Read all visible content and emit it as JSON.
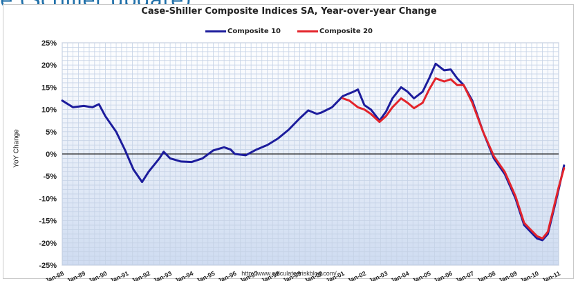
{
  "page": {
    "slide_title": "e (Schiller update)",
    "source": "http://www.calculatedriskblog.com/"
  },
  "chart_data": {
    "type": "line",
    "title": "Case-Shiller Composite Indices SA, Year-over-year Change",
    "xlabel": "",
    "ylabel": "YoY Change",
    "ylim": [
      -25,
      25
    ],
    "xlim": [
      1988.0,
      2011.0
    ],
    "y_ticks": [
      "25%",
      "20%",
      "15%",
      "10%",
      "5%",
      "0%",
      "-5%",
      "-10%",
      "-15%",
      "-20%",
      "-25%"
    ],
    "x_ticks": [
      "Jan-88",
      "Jan-89",
      "Jan-90",
      "Jan-91",
      "Jan-92",
      "Jan-93",
      "Jan-94",
      "Jan-95",
      "Jan-96",
      "Jan-97",
      "Jan-98",
      "Jan-99",
      "Jan-00",
      "Jan-01",
      "Jan-02",
      "Jan-03",
      "Jan-04",
      "Jan-05",
      "Jan-06",
      "Jan-07",
      "Jan-08",
      "Jan-09",
      "Jan-10",
      "Jan-11"
    ],
    "grid": true,
    "legend_position": "top-center",
    "series": [
      {
        "name": "Composite 10",
        "color": "#1c1c9c",
        "points": [
          [
            1988.0,
            12.0
          ],
          [
            1988.5,
            10.5
          ],
          [
            1989.0,
            10.8
          ],
          [
            1989.4,
            10.5
          ],
          [
            1989.7,
            11.2
          ],
          [
            1990.0,
            8.5
          ],
          [
            1990.5,
            5.0
          ],
          [
            1990.9,
            1.0
          ],
          [
            1991.3,
            -3.5
          ],
          [
            1991.7,
            -6.3
          ],
          [
            1992.0,
            -4.0
          ],
          [
            1992.5,
            -1.0
          ],
          [
            1992.7,
            0.5
          ],
          [
            1993.0,
            -1.0
          ],
          [
            1993.5,
            -1.7
          ],
          [
            1994.0,
            -1.8
          ],
          [
            1994.5,
            -1.0
          ],
          [
            1995.0,
            0.8
          ],
          [
            1995.5,
            1.5
          ],
          [
            1995.8,
            1.0
          ],
          [
            1996.0,
            0.0
          ],
          [
            1996.5,
            -0.3
          ],
          [
            1997.0,
            1.0
          ],
          [
            1997.5,
            2.0
          ],
          [
            1998.0,
            3.5
          ],
          [
            1998.5,
            5.5
          ],
          [
            1999.0,
            8.0
          ],
          [
            1999.4,
            9.8
          ],
          [
            1999.8,
            9.0
          ],
          [
            2000.0,
            9.3
          ],
          [
            2000.5,
            10.5
          ],
          [
            2001.0,
            13.0
          ],
          [
            2001.5,
            14.0
          ],
          [
            2001.7,
            14.5
          ],
          [
            2002.0,
            11.0
          ],
          [
            2002.3,
            10.0
          ],
          [
            2002.7,
            7.5
          ],
          [
            2003.0,
            9.5
          ],
          [
            2003.3,
            12.5
          ],
          [
            2003.7,
            15.0
          ],
          [
            2004.0,
            14.0
          ],
          [
            2004.3,
            12.5
          ],
          [
            2004.7,
            14.0
          ],
          [
            2005.0,
            17.0
          ],
          [
            2005.3,
            20.3
          ],
          [
            2005.7,
            18.8
          ],
          [
            2006.0,
            19.0
          ],
          [
            2006.3,
            17.0
          ],
          [
            2006.6,
            15.5
          ],
          [
            2007.0,
            12.0
          ],
          [
            2007.5,
            5.0
          ],
          [
            2008.0,
            -1.0
          ],
          [
            2008.5,
            -4.5
          ],
          [
            2009.0,
            -10.0
          ],
          [
            2009.4,
            -16.0
          ],
          [
            2009.7,
            -17.5
          ],
          [
            2010.0,
            -19.0
          ],
          [
            2010.25,
            -19.4
          ],
          [
            2010.5,
            -18.0
          ],
          [
            2010.8,
            -12.0
          ],
          [
            2011.0,
            -8.0
          ],
          [
            2011.25,
            -2.6
          ]
        ]
      },
      {
        "name": "Composite 20",
        "color": "#e3242b",
        "points": [
          [
            2001.0,
            12.5
          ],
          [
            2001.3,
            12.0
          ],
          [
            2001.7,
            10.5
          ],
          [
            2002.0,
            10.0
          ],
          [
            2002.3,
            9.0
          ],
          [
            2002.7,
            7.2
          ],
          [
            2003.0,
            8.5
          ],
          [
            2003.3,
            10.5
          ],
          [
            2003.7,
            12.5
          ],
          [
            2004.0,
            11.5
          ],
          [
            2004.3,
            10.3
          ],
          [
            2004.7,
            11.5
          ],
          [
            2005.0,
            14.5
          ],
          [
            2005.3,
            17.0
          ],
          [
            2005.7,
            16.3
          ],
          [
            2006.0,
            16.8
          ],
          [
            2006.3,
            15.5
          ],
          [
            2006.6,
            15.5
          ],
          [
            2007.0,
            11.5
          ],
          [
            2007.5,
            5.0
          ],
          [
            2008.0,
            -0.5
          ],
          [
            2008.5,
            -4.0
          ],
          [
            2009.0,
            -9.5
          ],
          [
            2009.4,
            -15.5
          ],
          [
            2009.7,
            -17.0
          ],
          [
            2010.0,
            -18.5
          ],
          [
            2010.25,
            -19.0
          ],
          [
            2010.5,
            -17.5
          ],
          [
            2010.8,
            -11.5
          ],
          [
            2011.0,
            -7.5
          ],
          [
            2011.25,
            -3.2
          ]
        ]
      }
    ]
  }
}
